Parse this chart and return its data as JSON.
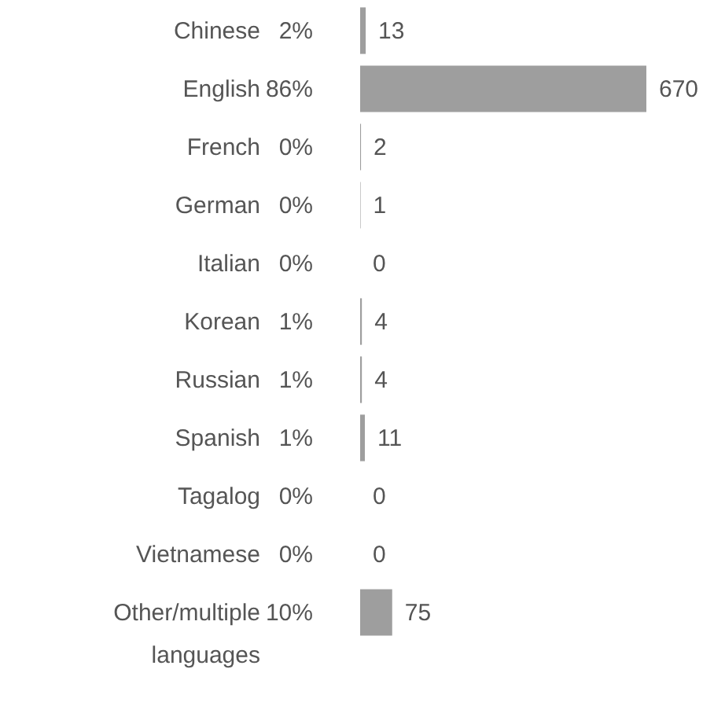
{
  "chart_data": {
    "type": "bar",
    "orientation": "horizontal",
    "categories": [
      "Chinese",
      "English",
      "French",
      "German",
      "Italian",
      "Korean",
      "Russian",
      "Spanish",
      "Tagalog",
      "Vietnamese",
      "Other/multiple languages"
    ],
    "values": [
      13,
      670,
      2,
      1,
      0,
      4,
      4,
      11,
      0,
      0,
      75
    ],
    "color": "#9e9e9e",
    "data_labels": true,
    "grid": false,
    "annotations": [
      "2%",
      "86%",
      "0%",
      "0%",
      "0%",
      "1%",
      "1%",
      "1%",
      "0%",
      "0%",
      "10%"
    ]
  }
}
